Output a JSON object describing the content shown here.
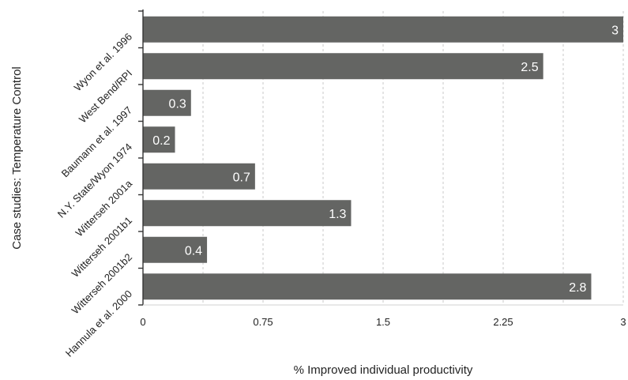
{
  "chart_data": {
    "type": "bar",
    "orientation": "horizontal",
    "categories": [
      "Wyon et al. 1996",
      "West Bend/RPI",
      "Baumann et al. 1997",
      "N.Y. State/Wyon 1974",
      "Witterseh 2001a",
      "Witterseh 2001b1",
      "Witterseh 2001b2",
      "Hannula et al. 2000"
    ],
    "values": [
      3,
      2.5,
      0.3,
      0.2,
      0.7,
      1.3,
      0.4,
      2.8
    ],
    "data_labels": [
      "3",
      "2.5",
      "0.3",
      "0.2",
      "0.7",
      "1.3",
      "0.4",
      "2.8"
    ],
    "xlabel": "% Improved individual productivity",
    "ylabel": "Case studies: Temperature Control",
    "xlim": [
      0,
      3
    ],
    "xticks": [
      0,
      0.75,
      1.5,
      2.25,
      3
    ],
    "xtick_labels": [
      "0",
      "0.75",
      "1.5",
      "2.25",
      "3"
    ],
    "grid": "vertical-dashed",
    "legend": "none",
    "colors": {
      "bar": "#646563",
      "axis": "#333333",
      "grid": "#c8c8c8",
      "label_text": "#ffffff"
    }
  }
}
